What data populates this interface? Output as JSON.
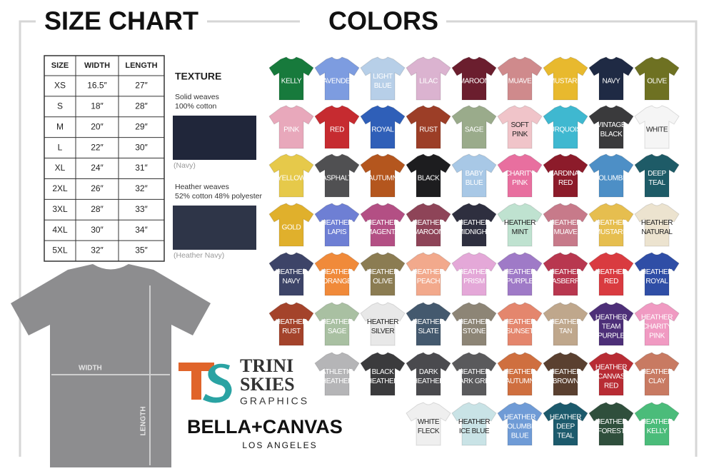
{
  "header": {
    "size_chart": "SIZE CHART",
    "colors": "COLORS"
  },
  "size_table": {
    "columns": [
      "SIZE",
      "WIDTH",
      "LENGTH"
    ],
    "rows": [
      [
        "XS",
        "16.5″",
        "27″"
      ],
      [
        "S",
        "18″",
        "28″"
      ],
      [
        "M",
        "20″",
        "29″"
      ],
      [
        "L",
        "22″",
        "30″"
      ],
      [
        "XL",
        "24″",
        "31″"
      ],
      [
        "2XL",
        "26″",
        "32″"
      ],
      [
        "3XL",
        "28″",
        "33″"
      ],
      [
        "4XL",
        "30″",
        "34″"
      ],
      [
        "5XL",
        "32″",
        "35″"
      ]
    ]
  },
  "texture": {
    "title": "TEXTURE",
    "items": [
      {
        "lines": [
          "Solid weaves",
          "100% cotton"
        ],
        "caption": "(Navy)",
        "color": "#20263a"
      },
      {
        "lines": [
          "Heather weaves",
          "52% cotton 48% polyester"
        ],
        "caption": "(Heather Navy)",
        "color": "#2e3548"
      }
    ]
  },
  "colors": {
    "rows": [
      [
        {
          "lines": [
            "KELLY"
          ],
          "color": "#177a3c"
        },
        {
          "lines": [
            "LAVENDER"
          ],
          "color": "#7d9ce0"
        },
        {
          "lines": [
            "LIGHT",
            "BLUE"
          ],
          "color": "#b7cfe8"
        },
        {
          "lines": [
            "LILAC"
          ],
          "color": "#dbb3d0"
        },
        {
          "lines": [
            "MAROON"
          ],
          "color": "#6b1e2e"
        },
        {
          "lines": [
            "MUAVE"
          ],
          "color": "#cf8a8c"
        },
        {
          "lines": [
            "MUSTARD"
          ],
          "color": "#e8b92e"
        },
        {
          "lines": [
            "NAVY"
          ],
          "color": "#1f2a44"
        },
        {
          "lines": [
            "OLIVE"
          ],
          "color": "#6e7122"
        }
      ],
      [
        {
          "lines": [
            "PINK"
          ],
          "color": "#e8a8bb"
        },
        {
          "lines": [
            "RED"
          ],
          "color": "#c62b30"
        },
        {
          "lines": [
            "ROYAL"
          ],
          "color": "#2f5fb8"
        },
        {
          "lines": [
            "RUST"
          ],
          "color": "#9c3e27"
        },
        {
          "lines": [
            "SAGE"
          ],
          "color": "#9aab8b"
        },
        {
          "lines": [
            "SOFT",
            "PINK"
          ],
          "color": "#f0c4c9"
        },
        {
          "lines": [
            "TURQUOISE"
          ],
          "color": "#3fb8d0"
        },
        {
          "lines": [
            "VINTAGE",
            "BLACK"
          ],
          "color": "#3a3a3c"
        },
        {
          "lines": [
            "WHITE"
          ],
          "color": "#f5f5f5"
        }
      ],
      [
        {
          "lines": [
            "YELLOW"
          ],
          "color": "#e6c94a"
        },
        {
          "lines": [
            "ASPHALT"
          ],
          "color": "#505052"
        },
        {
          "lines": [
            "AUTUMN"
          ],
          "color": "#b4561e"
        },
        {
          "lines": [
            "BLACK"
          ],
          "color": "#1d1d1f"
        },
        {
          "lines": [
            "BABY",
            "BLUE"
          ],
          "color": "#a8c8e6"
        },
        {
          "lines": [
            "CHARITY",
            "PINK"
          ],
          "color": "#e86f9f"
        },
        {
          "lines": [
            "CARDINAL",
            "RED"
          ],
          "color": "#8c1b2a"
        },
        {
          "lines": [
            "COLUMBIA"
          ],
          "color": "#4d8fc6"
        },
        {
          "lines": [
            "DEEP",
            "TEAL"
          ],
          "color": "#1e5b67"
        }
      ],
      [
        {
          "lines": [
            "GOLD"
          ],
          "color": "#e0b02c"
        },
        {
          "lines": [
            "HEATHER",
            "LAPIS"
          ],
          "color": "#6e7fd4"
        },
        {
          "lines": [
            "HEATHER",
            "MAGENTA"
          ],
          "color": "#b34f84"
        },
        {
          "lines": [
            "HEATHER",
            "MAROON"
          ],
          "color": "#8e4458"
        },
        {
          "lines": [
            "HEATHER",
            "MIDNIGHT"
          ],
          "color": "#2e2f3f"
        },
        {
          "lines": [
            "HEATHER",
            "MINT"
          ],
          "color": "#bfe2d0"
        },
        {
          "lines": [
            "HEATHER",
            "MUAVE"
          ],
          "color": "#c77a8a"
        },
        {
          "lines": [
            "HEATHER",
            "MUSTARD"
          ],
          "color": "#e6be4f"
        },
        {
          "lines": [
            "HEATHER",
            "NATURAL"
          ],
          "color": "#ece3cf"
        }
      ],
      [
        {
          "lines": [
            "HEATHER",
            "NAVY"
          ],
          "color": "#3d4468"
        },
        {
          "lines": [
            "HEATHER",
            "ORANGE"
          ],
          "color": "#f08a3a"
        },
        {
          "lines": [
            "HEATHER",
            "OLIVE"
          ],
          "color": "#8b7c52"
        },
        {
          "lines": [
            "HEATHER",
            "PEACH"
          ],
          "color": "#f2a98c"
        },
        {
          "lines": [
            "HEATHER",
            "PRISM"
          ],
          "color": "#e4a8d8"
        },
        {
          "lines": [
            "HEATHER",
            "PURPLE"
          ],
          "color": "#9f7ac7"
        },
        {
          "lines": [
            "HEATHER",
            "RASBERRY"
          ],
          "color": "#b8374f"
        },
        {
          "lines": [
            "HEATHER",
            "RED"
          ],
          "color": "#d93b40"
        },
        {
          "lines": [
            "HEATHER",
            "ROYAL"
          ],
          "color": "#2f4ea6"
        }
      ],
      [
        {
          "lines": [
            "HEATHER",
            "RUST"
          ],
          "color": "#a4432b"
        },
        {
          "lines": [
            "HEATHER",
            "SAGE"
          ],
          "color": "#a9c0a2"
        },
        {
          "lines": [
            "HEATHER",
            "SILVER"
          ],
          "color": "#e8e8e8"
        },
        {
          "lines": [
            "HEATHER",
            "SLATE"
          ],
          "color": "#44596e"
        },
        {
          "lines": [
            "HEATHER",
            "STONE"
          ],
          "color": "#8d8576"
        },
        {
          "lines": [
            "HEATHER",
            "SUNSET"
          ],
          "color": "#e4866d"
        },
        {
          "lines": [
            "HEATHER",
            "TAN"
          ],
          "color": "#bfa78c"
        },
        {
          "lines": [
            "HEATHER",
            "TEAM",
            "PURPLE"
          ],
          "color": "#4d2f78"
        },
        {
          "lines": [
            "HEATHER",
            "CHARITY",
            "PINK"
          ],
          "color": "#f09ac2"
        }
      ],
      [
        {
          "lines": [
            "ATHLETIC",
            "HEATHER"
          ],
          "color": "#b5b5b7"
        },
        {
          "lines": [
            "BLACK",
            "HEATHER"
          ],
          "color": "#3b3b3d"
        },
        {
          "lines": [
            "DARK",
            "HEATHER"
          ],
          "color": "#4a4a4e"
        },
        {
          "lines": [
            "HEATHER",
            "DARK GREY"
          ],
          "color": "#5a5a5c"
        },
        {
          "lines": [
            "HEATHER",
            "AUTUMN"
          ],
          "color": "#cf6f3f"
        },
        {
          "lines": [
            "HEATHER",
            "BROWN"
          ],
          "color": "#5a4030"
        },
        {
          "lines": [
            "HEATHER",
            "CANVAS",
            "RED"
          ],
          "color": "#b82c34"
        },
        {
          "lines": [
            "HEATHER",
            "CLAY"
          ],
          "color": "#c87a62"
        }
      ],
      [
        {
          "lines": [
            "WHITE",
            "FLECK"
          ],
          "color": "#efefef"
        },
        {
          "lines": [
            "HEATHER",
            "ICE BLUE"
          ],
          "color": "#c9e3e6"
        },
        {
          "lines": [
            "HEATHER",
            "COLUMBIA",
            "BLUE"
          ],
          "color": "#6f9bd6"
        },
        {
          "lines": [
            "HEATHER",
            "DEEP",
            "TEAL"
          ],
          "color": "#1c5a6c"
        },
        {
          "lines": [
            "HEATHER",
            "FOREST"
          ],
          "color": "#2f4f3c"
        },
        {
          "lines": [
            "HEATHER",
            "KELLY"
          ],
          "color": "#4bbc7a"
        }
      ]
    ]
  },
  "diagram": {
    "width": "WIDTH",
    "length": "LENGTH"
  },
  "logos": {
    "trini": "TRINI",
    "skies": "SKIES",
    "graphics": "GRAPHICS",
    "bella": "BELLA+CANVAS",
    "la": "LOS ANGELES"
  }
}
